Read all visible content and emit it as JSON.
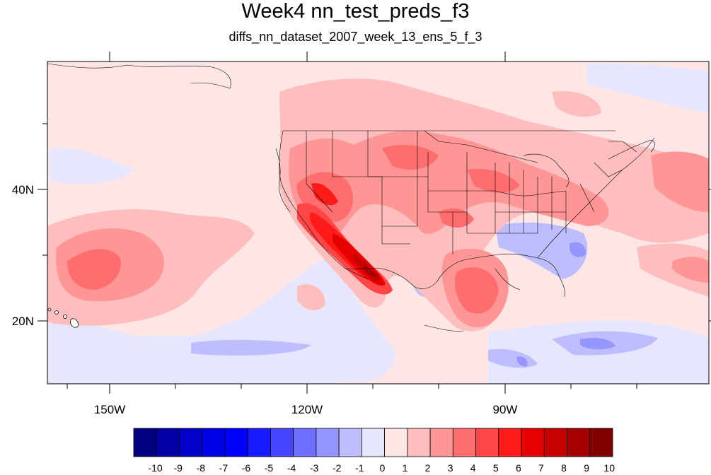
{
  "title": "Week4 nn_test_preds_f3",
  "subtitle": "diffs_nn_dataset_2007_week_13_ens_5_f_3",
  "axes": {
    "lat_ticks": [
      "40N",
      "20N"
    ],
    "lon_ticks": [
      "150W",
      "120W",
      "90W"
    ]
  },
  "colorbar": {
    "labels": [
      "-10",
      "-9",
      "-8",
      "-7",
      "-6",
      "-5",
      "-4",
      "-3",
      "-2",
      "-1",
      "0",
      "1",
      "2",
      "3",
      "4",
      "5",
      "6",
      "7",
      "8",
      "9",
      "10"
    ],
    "colors": [
      "#000080",
      "#0000a6",
      "#0000c8",
      "#0000e6",
      "#0000ff",
      "#1a1aff",
      "#4646ff",
      "#6e6eff",
      "#9696ff",
      "#bebeff",
      "#e6e6ff",
      "#ffe6e6",
      "#ffbebe",
      "#ff9696",
      "#ff6e6e",
      "#ff4646",
      "#ff1a1a",
      "#e60000",
      "#c80000",
      "#a60000",
      "#800000"
    ]
  },
  "map": {
    "background_color": "#ffe6e6"
  }
}
